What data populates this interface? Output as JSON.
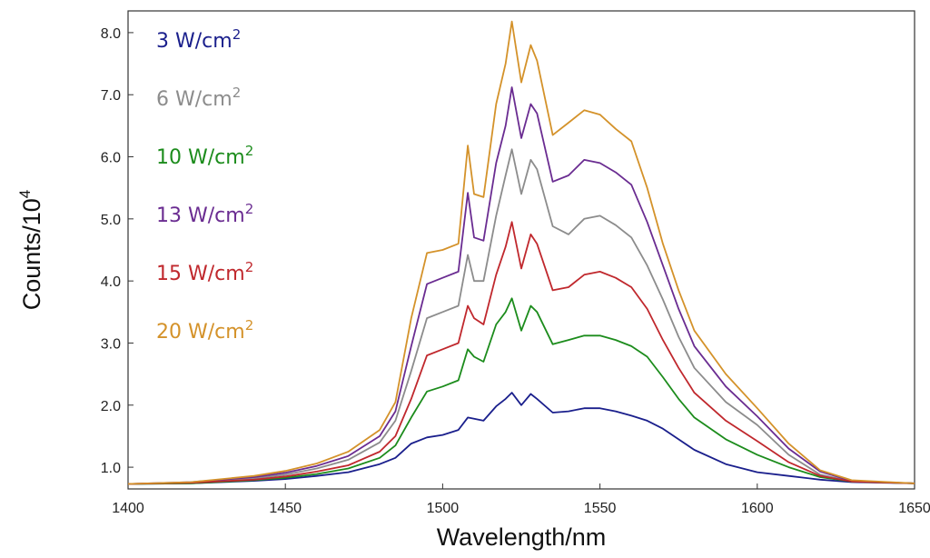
{
  "chart_data": {
    "type": "line",
    "xlabel": "Wavelength/nm",
    "ylabel": {
      "base": "Counts/10",
      "exponent": "4"
    },
    "xlim": [
      1400,
      1650
    ],
    "ylim": [
      0.65,
      8.35
    ],
    "xticks": [
      1400,
      1450,
      1500,
      1550,
      1600,
      1650
    ],
    "yticks": [
      "1.0",
      "2.0",
      "3.0",
      "4.0",
      "5.0",
      "6.0",
      "7.0",
      "8.0"
    ],
    "legend_placement": "top-left",
    "grid": false,
    "x": [
      1400,
      1420,
      1440,
      1450,
      1460,
      1470,
      1480,
      1485,
      1490,
      1495,
      1500,
      1505,
      1508,
      1510,
      1513,
      1517,
      1520,
      1522,
      1525,
      1528,
      1530,
      1535,
      1540,
      1545,
      1550,
      1555,
      1560,
      1565,
      1570,
      1575,
      1580,
      1590,
      1600,
      1610,
      1620,
      1630,
      1650
    ],
    "series": [
      {
        "name": "3 W/cm",
        "sup": "2",
        "color": "#1a1f8c",
        "values": [
          0.73,
          0.74,
          0.78,
          0.81,
          0.86,
          0.92,
          1.05,
          1.15,
          1.38,
          1.48,
          1.52,
          1.6,
          1.8,
          1.78,
          1.75,
          1.98,
          2.1,
          2.2,
          2.0,
          2.18,
          2.1,
          1.88,
          1.9,
          1.95,
          1.95,
          1.9,
          1.83,
          1.75,
          1.62,
          1.45,
          1.28,
          1.05,
          0.92,
          0.86,
          0.8,
          0.76,
          0.74
        ]
      },
      {
        "name": "6 W/cm",
        "sup": "2",
        "color": "#8c8c8c",
        "values": [
          0.73,
          0.75,
          0.82,
          0.88,
          0.98,
          1.12,
          1.4,
          1.75,
          2.55,
          3.4,
          3.5,
          3.6,
          4.42,
          4.0,
          4.0,
          5.05,
          5.7,
          6.12,
          5.4,
          5.95,
          5.8,
          4.88,
          4.75,
          5.0,
          5.05,
          4.9,
          4.7,
          4.25,
          3.7,
          3.1,
          2.6,
          2.05,
          1.68,
          1.2,
          0.88,
          0.77,
          0.74
        ]
      },
      {
        "name": "10 W/cm",
        "sup": "2",
        "color": "#1c8c1c",
        "values": [
          0.73,
          0.74,
          0.79,
          0.83,
          0.89,
          0.98,
          1.15,
          1.35,
          1.8,
          2.22,
          2.3,
          2.4,
          2.9,
          2.78,
          2.7,
          3.3,
          3.5,
          3.72,
          3.2,
          3.6,
          3.5,
          2.98,
          3.05,
          3.12,
          3.12,
          3.05,
          2.95,
          2.78,
          2.45,
          2.1,
          1.8,
          1.45,
          1.2,
          1.0,
          0.84,
          0.77,
          0.74
        ]
      },
      {
        "name": "13 W/cm",
        "sup": "2",
        "color": "#6a2c91",
        "values": [
          0.73,
          0.76,
          0.84,
          0.91,
          1.02,
          1.18,
          1.5,
          1.9,
          2.95,
          3.95,
          4.05,
          4.15,
          5.42,
          4.7,
          4.65,
          5.9,
          6.5,
          7.12,
          6.3,
          6.85,
          6.7,
          5.6,
          5.7,
          5.95,
          5.9,
          5.75,
          5.55,
          4.95,
          4.25,
          3.55,
          2.95,
          2.3,
          1.82,
          1.3,
          0.93,
          0.78,
          0.74
        ]
      },
      {
        "name": "15 W/cm",
        "sup": "2",
        "color": "#c0282d",
        "values": [
          0.73,
          0.75,
          0.8,
          0.85,
          0.93,
          1.03,
          1.25,
          1.5,
          2.1,
          2.8,
          2.9,
          3.0,
          3.6,
          3.4,
          3.3,
          4.1,
          4.55,
          4.95,
          4.2,
          4.75,
          4.6,
          3.85,
          3.9,
          4.1,
          4.15,
          4.05,
          3.9,
          3.55,
          3.05,
          2.6,
          2.2,
          1.75,
          1.42,
          1.08,
          0.86,
          0.77,
          0.74
        ]
      },
      {
        "name": "20 W/cm",
        "sup": "2",
        "color": "#d4922a",
        "values": [
          0.73,
          0.76,
          0.86,
          0.94,
          1.06,
          1.25,
          1.6,
          2.05,
          3.4,
          4.45,
          4.5,
          4.6,
          6.18,
          5.4,
          5.35,
          6.85,
          7.5,
          8.18,
          7.2,
          7.8,
          7.55,
          6.35,
          6.55,
          6.75,
          6.68,
          6.45,
          6.25,
          5.5,
          4.6,
          3.85,
          3.2,
          2.5,
          1.95,
          1.38,
          0.95,
          0.79,
          0.74
        ]
      }
    ]
  }
}
